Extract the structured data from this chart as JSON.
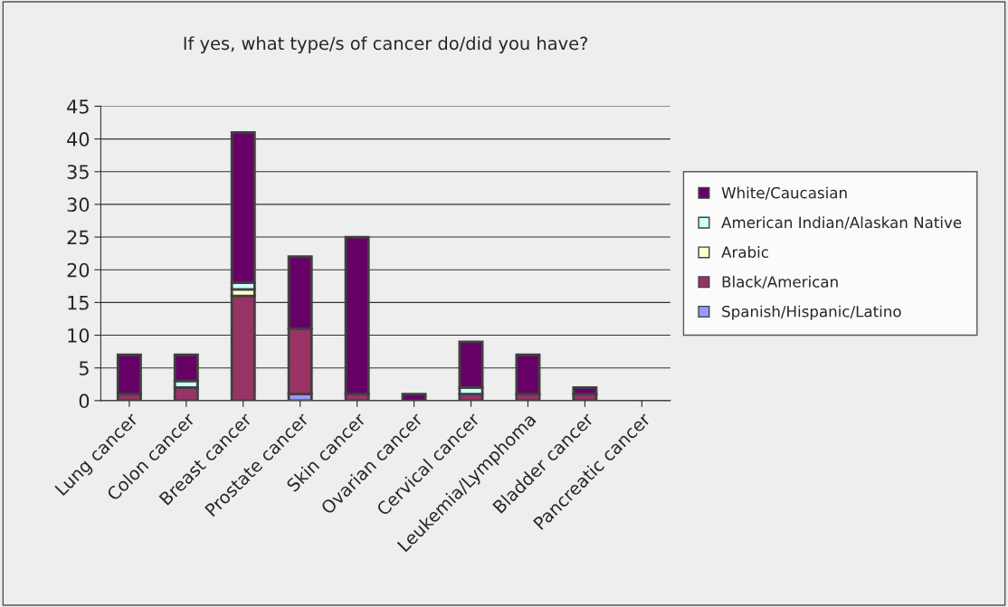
{
  "chart_data": {
    "type": "bar",
    "title": "If yes, what type/s of cancer do/did you have?",
    "categories": [
      "Lung cancer",
      "Colon cancer",
      "Breast cancer",
      "Prostate cancer",
      "Skin cancer",
      "Ovarian cancer",
      "Cervical cancer",
      "Leukemia/Lymphoma",
      "Bladder cancer",
      "Pancreatic cancer"
    ],
    "stacked": true,
    "series": [
      {
        "name": "Spanish/Hispanic/Latino",
        "color": "#9999ff",
        "values": [
          0,
          0,
          0,
          1,
          0,
          0,
          0,
          0,
          0,
          0
        ]
      },
      {
        "name": "Black/American",
        "color": "#993366",
        "values": [
          1,
          2,
          16,
          10,
          1,
          0,
          1,
          1,
          1,
          0
        ]
      },
      {
        "name": "Arabic",
        "color": "#ffffcc",
        "values": [
          0,
          0,
          1,
          0,
          0,
          0,
          0,
          0,
          0,
          0
        ]
      },
      {
        "name": "American Indian/Alaskan Native",
        "color": "#ccffff",
        "values": [
          0,
          1,
          1,
          0,
          0,
          0,
          1,
          0,
          0,
          0
        ]
      },
      {
        "name": "White/Caucasian",
        "color": "#660066",
        "values": [
          6,
          4,
          23,
          11,
          24,
          1,
          7,
          6,
          1,
          0
        ]
      }
    ],
    "ylim": [
      0,
      45
    ],
    "yticks": [
      0,
      5,
      10,
      15,
      20,
      25,
      30,
      35,
      40,
      45
    ],
    "grid": "y",
    "legend": "right"
  }
}
